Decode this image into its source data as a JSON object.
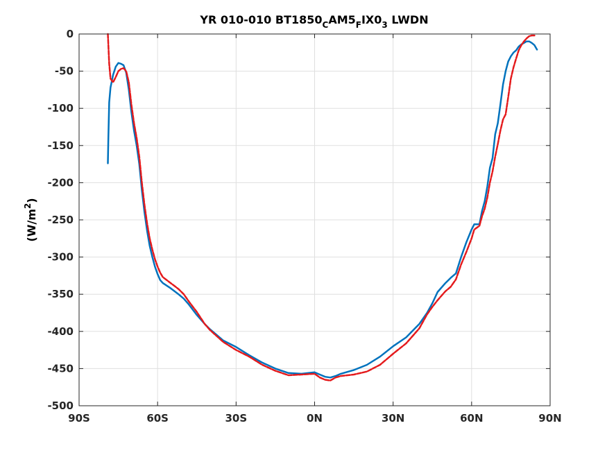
{
  "chart_data": {
    "type": "line",
    "title_main": "YR 010-010 BT1850",
    "title_sub1": "C",
    "title_mid": "AM5",
    "title_sub2": "F",
    "title_mid2": "IX0",
    "title_sub3": "3",
    "title_end": " LWDN",
    "ylabel_main": "(W/m",
    "ylabel_sup": "2",
    "ylabel_end": ")",
    "xlim": [
      -90,
      90
    ],
    "ylim": [
      -500,
      0
    ],
    "x_ticks": [
      -90,
      -60,
      -30,
      0,
      30,
      60,
      90
    ],
    "x_tick_labels": [
      "90S",
      "60S",
      "30S",
      "0N",
      "30N",
      "60N",
      "90N"
    ],
    "y_ticks": [
      0,
      -50,
      -100,
      -150,
      -200,
      -250,
      -300,
      -350,
      -400,
      -450,
      -500
    ],
    "y_tick_labels": [
      "0",
      "-50",
      "-100",
      "-150",
      "-200",
      "-250",
      "-300",
      "-350",
      "-400",
      "-450",
      "-500"
    ],
    "grid": true,
    "series": [
      {
        "color": "#0072bd",
        "style": "solid",
        "points": [
          [
            -79,
            -174
          ],
          [
            -78.8,
            -140
          ],
          [
            -78.5,
            -92
          ],
          [
            -78,
            -72
          ],
          [
            -77,
            -55
          ],
          [
            -76,
            -44
          ],
          [
            -75,
            -39
          ],
          [
            -74,
            -40
          ],
          [
            -73,
            -42
          ],
          [
            -72,
            -52
          ],
          [
            -71,
            -75
          ],
          [
            -70,
            -105
          ],
          [
            -69,
            -130
          ],
          [
            -68,
            -150
          ],
          [
            -67,
            -175
          ],
          [
            -66,
            -210
          ],
          [
            -65,
            -240
          ],
          [
            -64,
            -265
          ],
          [
            -63,
            -285
          ],
          [
            -62,
            -300
          ],
          [
            -61,
            -313
          ],
          [
            -60,
            -323
          ],
          [
            -59,
            -331
          ],
          [
            -58,
            -335
          ],
          [
            -55,
            -342
          ],
          [
            -52,
            -350
          ],
          [
            -50,
            -356
          ],
          [
            -48,
            -364
          ],
          [
            -45,
            -378
          ],
          [
            -42,
            -390
          ],
          [
            -40,
            -397
          ],
          [
            -35,
            -412
          ],
          [
            -30,
            -421
          ],
          [
            -25,
            -432
          ],
          [
            -20,
            -442
          ],
          [
            -15,
            -450
          ],
          [
            -10,
            -456
          ],
          [
            -5,
            -457
          ],
          [
            0,
            -455
          ],
          [
            2,
            -458
          ],
          [
            4,
            -461
          ],
          [
            6,
            -462
          ],
          [
            8,
            -460
          ],
          [
            10,
            -457
          ],
          [
            15,
            -452
          ],
          [
            20,
            -445
          ],
          [
            25,
            -434
          ],
          [
            30,
            -420
          ],
          [
            35,
            -408
          ],
          [
            40,
            -390
          ],
          [
            43,
            -375
          ],
          [
            45,
            -362
          ],
          [
            47,
            -347
          ],
          [
            50,
            -335
          ],
          [
            52,
            -328
          ],
          [
            54,
            -322
          ],
          [
            56,
            -300
          ],
          [
            58,
            -280
          ],
          [
            60,
            -263
          ],
          [
            61,
            -256
          ],
          [
            63,
            -256
          ],
          [
            64,
            -238
          ],
          [
            65,
            -225
          ],
          [
            66,
            -205
          ],
          [
            67,
            -180
          ],
          [
            68,
            -167
          ],
          [
            69,
            -135
          ],
          [
            70,
            -120
          ],
          [
            71,
            -95
          ],
          [
            72,
            -68
          ],
          [
            73,
            -50
          ],
          [
            74,
            -37
          ],
          [
            75,
            -30
          ],
          [
            76,
            -25
          ],
          [
            77,
            -22
          ],
          [
            78,
            -17
          ],
          [
            79,
            -14
          ],
          [
            80,
            -12
          ],
          [
            81,
            -10
          ],
          [
            82,
            -10
          ],
          [
            83,
            -12
          ],
          [
            84,
            -15
          ],
          [
            85,
            -21
          ]
        ]
      },
      {
        "color": "#e41a1c",
        "style": "dashed",
        "points": [
          [
            -79,
            0
          ],
          [
            -78.8,
            -15
          ],
          [
            -78.5,
            -40
          ],
          [
            -78,
            -60
          ],
          [
            -77,
            -65
          ],
          [
            -76,
            -58
          ],
          [
            -75,
            -50
          ],
          [
            -74,
            -47
          ],
          [
            -73,
            -46
          ],
          [
            -72,
            -50
          ],
          [
            -71,
            -65
          ],
          [
            -70,
            -95
          ],
          [
            -69,
            -120
          ],
          [
            -68,
            -140
          ],
          [
            -67,
            -165
          ],
          [
            -66,
            -200
          ],
          [
            -65,
            -230
          ],
          [
            -64,
            -255
          ],
          [
            -63,
            -275
          ],
          [
            -62,
            -290
          ],
          [
            -61,
            -303
          ],
          [
            -60,
            -313
          ],
          [
            -59,
            -321
          ],
          [
            -58,
            -327
          ],
          [
            -55,
            -335
          ],
          [
            -52,
            -343
          ],
          [
            -50,
            -350
          ],
          [
            -48,
            -360
          ],
          [
            -45,
            -374
          ],
          [
            -42,
            -390
          ],
          [
            -40,
            -398
          ],
          [
            -35,
            -414
          ],
          [
            -30,
            -425
          ],
          [
            -25,
            -434
          ],
          [
            -20,
            -445
          ],
          [
            -15,
            -453
          ],
          [
            -10,
            -459
          ],
          [
            -5,
            -458
          ],
          [
            0,
            -457
          ],
          [
            2,
            -462
          ],
          [
            4,
            -465
          ],
          [
            6,
            -466
          ],
          [
            8,
            -462
          ],
          [
            10,
            -460
          ],
          [
            15,
            -458
          ],
          [
            20,
            -454
          ],
          [
            25,
            -445
          ],
          [
            30,
            -430
          ],
          [
            35,
            -416
          ],
          [
            40,
            -396
          ],
          [
            43,
            -377
          ],
          [
            45,
            -367
          ],
          [
            47,
            -358
          ],
          [
            50,
            -346
          ],
          [
            52,
            -340
          ],
          [
            54,
            -330
          ],
          [
            56,
            -310
          ],
          [
            58,
            -293
          ],
          [
            60,
            -275
          ],
          [
            61,
            -263
          ],
          [
            63,
            -258
          ],
          [
            64,
            -245
          ],
          [
            65,
            -235
          ],
          [
            66,
            -220
          ],
          [
            67,
            -200
          ],
          [
            68,
            -185
          ],
          [
            69,
            -165
          ],
          [
            70,
            -148
          ],
          [
            71,
            -130
          ],
          [
            72,
            -115
          ],
          [
            73,
            -108
          ],
          [
            74,
            -85
          ],
          [
            75,
            -60
          ],
          [
            76,
            -45
          ],
          [
            77,
            -33
          ],
          [
            78,
            -22
          ],
          [
            79,
            -15
          ],
          [
            80,
            -10
          ],
          [
            81,
            -6
          ],
          [
            82,
            -3
          ],
          [
            83,
            -2
          ],
          [
            84,
            -2
          ]
        ]
      }
    ]
  }
}
